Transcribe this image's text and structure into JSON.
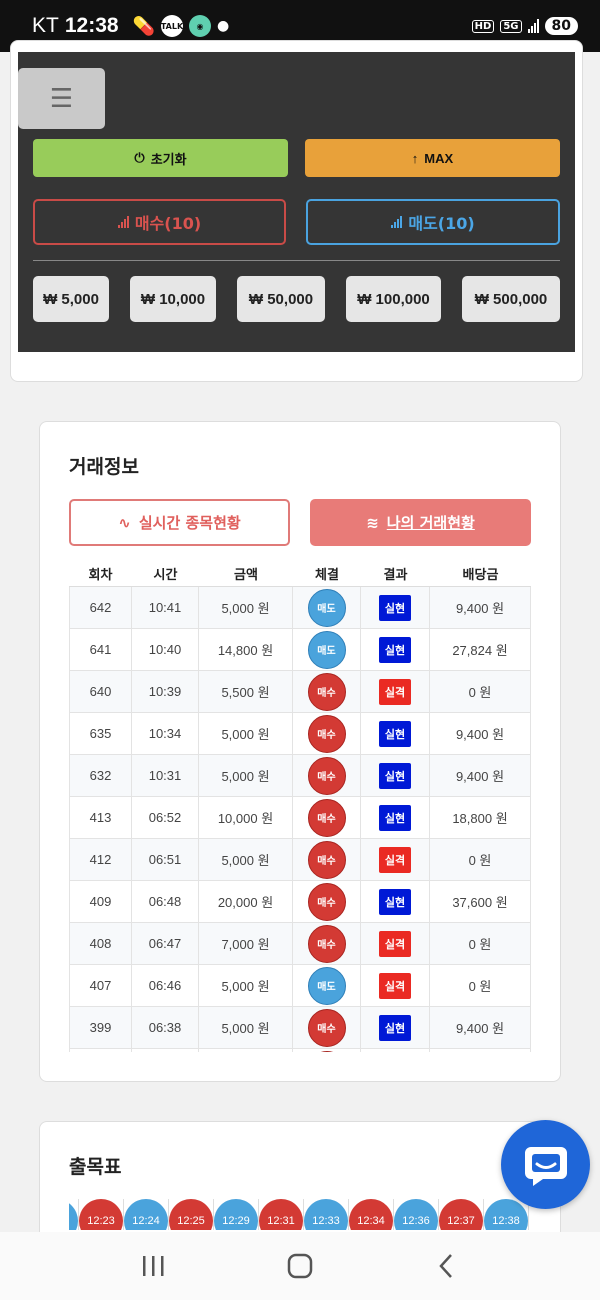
{
  "status_bar": {
    "carrier": "KT",
    "time": "12:38",
    "talk_icon_text": "TALK",
    "network": "5G",
    "hd": "HD",
    "battery": "80"
  },
  "controls": {
    "reset_label": "초기화",
    "max_label": "MAX",
    "buy_label": "매수(10)",
    "sell_label": "매도(10)",
    "amounts": [
      "₩ 5,000",
      "₩ 10,000",
      "₩ 50,000",
      "₩ 100,000",
      "₩ 500,000"
    ]
  },
  "trade": {
    "title": "거래정보",
    "tab_live": "실시간 종목현황",
    "tab_mine": "나의 거래현황",
    "columns": [
      "회차",
      "시간",
      "금액",
      "체결",
      "결과",
      "배당금"
    ],
    "rows": [
      {
        "round": "642",
        "time": "10:41",
        "amount": "5,000 원",
        "side": "매도",
        "result": "실현",
        "payout": "9,400 원"
      },
      {
        "round": "641",
        "time": "10:40",
        "amount": "14,800 원",
        "side": "매도",
        "result": "실현",
        "payout": "27,824 원"
      },
      {
        "round": "640",
        "time": "10:39",
        "amount": "5,500 원",
        "side": "매수",
        "result": "실격",
        "payout": "0 원"
      },
      {
        "round": "635",
        "time": "10:34",
        "amount": "5,000 원",
        "side": "매수",
        "result": "실현",
        "payout": "9,400 원"
      },
      {
        "round": "632",
        "time": "10:31",
        "amount": "5,000 원",
        "side": "매수",
        "result": "실현",
        "payout": "9,400 원"
      },
      {
        "round": "413",
        "time": "06:52",
        "amount": "10,000 원",
        "side": "매수",
        "result": "실현",
        "payout": "18,800 원"
      },
      {
        "round": "412",
        "time": "06:51",
        "amount": "5,000 원",
        "side": "매수",
        "result": "실격",
        "payout": "0 원"
      },
      {
        "round": "409",
        "time": "06:48",
        "amount": "20,000 원",
        "side": "매수",
        "result": "실현",
        "payout": "37,600 원"
      },
      {
        "round": "408",
        "time": "06:47",
        "amount": "7,000 원",
        "side": "매수",
        "result": "실격",
        "payout": "0 원"
      },
      {
        "round": "407",
        "time": "06:46",
        "amount": "5,000 원",
        "side": "매도",
        "result": "실격",
        "payout": "0 원"
      },
      {
        "round": "399",
        "time": "06:38",
        "amount": "5,000 원",
        "side": "매수",
        "result": "실현",
        "payout": "9,400 원"
      },
      {
        "round": "",
        "time": "",
        "amount": "",
        "side": "매수",
        "result": "",
        "payout": ""
      }
    ]
  },
  "chart_section": {
    "title": "출목표",
    "balls": [
      {
        "time": "",
        "side": "sell"
      },
      {
        "time": "12:23",
        "side": "buy"
      },
      {
        "time": "12:24",
        "side": "sell"
      },
      {
        "time": "12:25",
        "side": "buy"
      },
      {
        "time": "12:29",
        "side": "sell"
      },
      {
        "time": "12:31",
        "side": "buy"
      },
      {
        "time": "12:33",
        "side": "sell"
      },
      {
        "time": "12:34",
        "side": "buy"
      },
      {
        "time": "12:36",
        "side": "sell"
      },
      {
        "time": "12:37",
        "side": "buy"
      },
      {
        "time": "12:38",
        "side": "sell"
      }
    ]
  },
  "colors": {
    "buy": "#d33a34",
    "sell": "#4aa3dc",
    "win": "#0019d6",
    "lose": "#ea2a23"
  }
}
